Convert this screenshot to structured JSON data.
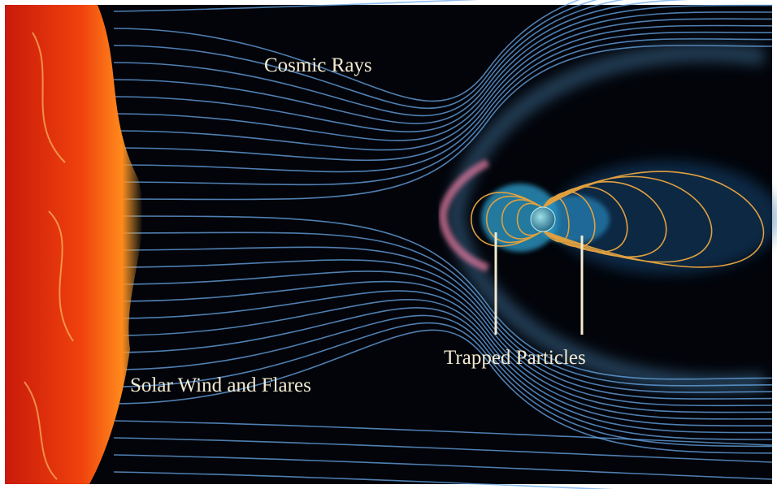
{
  "labels": {
    "cosmic_rays": "Cosmic Rays",
    "trapped_particles": "Trapped Particles",
    "solar_wind": "Solar Wind and Flares"
  }
}
